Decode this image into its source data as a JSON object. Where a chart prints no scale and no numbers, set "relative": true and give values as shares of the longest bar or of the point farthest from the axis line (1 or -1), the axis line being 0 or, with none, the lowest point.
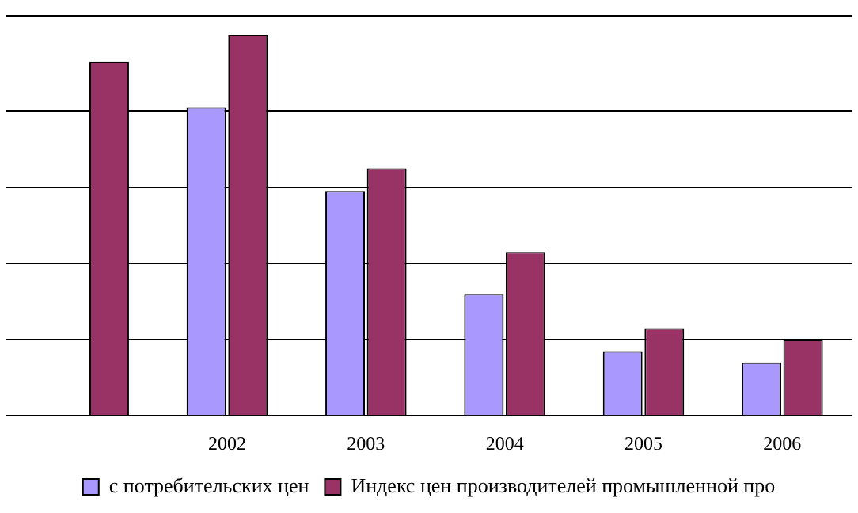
{
  "chart_data": {
    "type": "bar",
    "relative": true,
    "categories": [
      null,
      "2002",
      "2003",
      "2004",
      "2005",
      "2006"
    ],
    "series": [
      {
        "name": "с потребительских цен",
        "color": "#a999ff",
        "values": [
          null,
          0.81,
          0.59,
          0.32,
          0.17,
          0.14
        ]
      },
      {
        "name": "Индекс цен производителей промышленной про",
        "color": "#993366",
        "values": [
          0.93,
          1.0,
          0.65,
          0.43,
          0.23,
          0.2
        ]
      }
    ],
    "grid": "y",
    "legend": "bottom"
  }
}
